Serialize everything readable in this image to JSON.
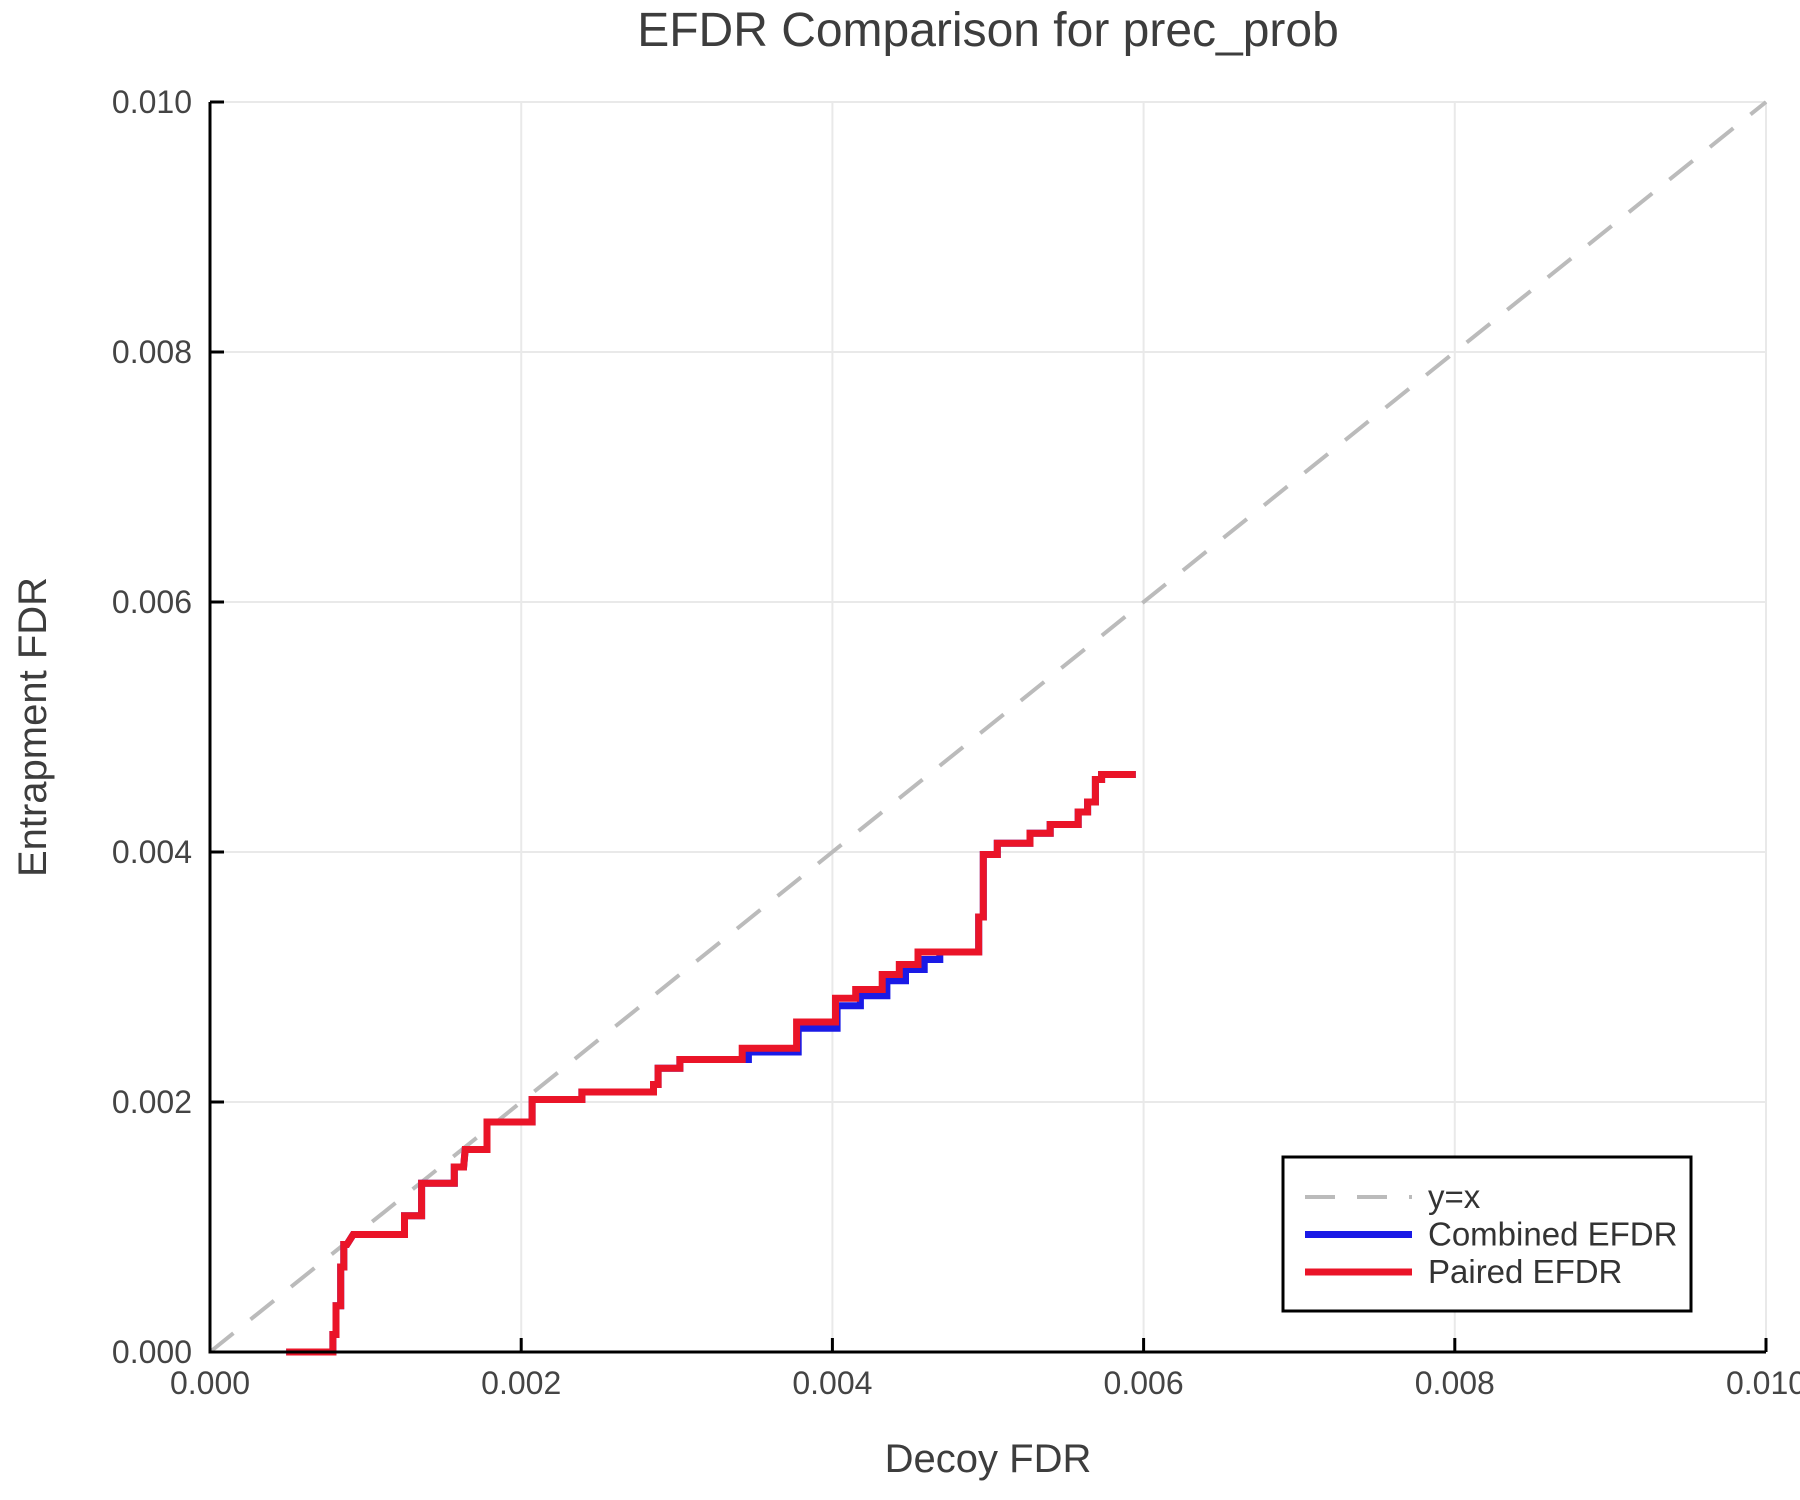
{
  "title": "EFDR Comparison for prec_prob",
  "x_axis": {
    "label": "Decoy FDR",
    "tick_labels": [
      "0.000",
      "0.002",
      "0.004",
      "0.006",
      "0.008",
      "0.010"
    ],
    "tick_values": [
      0.0,
      0.002,
      0.004,
      0.006,
      0.008,
      0.01
    ],
    "range": [
      0.0,
      0.01
    ]
  },
  "y_axis": {
    "label": "Entrapment FDR",
    "tick_labels": [
      "0.000",
      "0.002",
      "0.004",
      "0.006",
      "0.008",
      "0.010"
    ],
    "tick_values": [
      0.0,
      0.002,
      0.004,
      0.006,
      0.008,
      0.01
    ],
    "range": [
      0.0,
      0.01
    ]
  },
  "legend": {
    "position": "lower right",
    "items": [
      {
        "label": "y=x",
        "color": "#bbbbbb",
        "dashed": true
      },
      {
        "label": "Combined EFDR",
        "color": "#1a1ae6",
        "dashed": false
      },
      {
        "label": "Paired EFDR",
        "color": "#ea1428",
        "dashed": false
      }
    ]
  },
  "colors": {
    "identity_line": "#bbbbbb",
    "combined_line": "#1a1ae6",
    "paired_line": "#ea1428",
    "gridline": "#e9e9e9",
    "spine": "#000000",
    "text": "#3d3d3d",
    "legend_border": "#000000",
    "background": "#ffffff"
  },
  "chart_data": {
    "type": "line",
    "title": "EFDR Comparison for prec_prob",
    "xlabel": "Decoy FDR",
    "ylabel": "Entrapment FDR",
    "xlim": [
      0.0,
      0.01
    ],
    "ylim": [
      0.0,
      0.01
    ],
    "grid": true,
    "legend_position": "lower right",
    "series": [
      {
        "name": "y=x",
        "color": "#bbbbbb",
        "style": "dashed",
        "width": 4,
        "points": [
          [
            0.0,
            0.0
          ],
          [
            0.01,
            0.01
          ]
        ]
      },
      {
        "name": "Combined EFDR",
        "color": "#1a1ae6",
        "style": "solid",
        "width": 7,
        "points": [
          [
            0.00049,
            0
          ],
          [
            0.00079,
            0
          ],
          [
            0.00079,
            0.00014
          ],
          [
            0.00081,
            0.00014
          ],
          [
            0.00081,
            0.00037
          ],
          [
            0.00084,
            0.00037
          ],
          [
            0.00084,
            0.00068
          ],
          [
            0.00086,
            0.00068
          ],
          [
            0.00086,
            0.00086
          ],
          [
            0.00088,
            0.00086
          ],
          [
            0.00092,
            0.00094
          ],
          [
            0.00125,
            0.00094
          ],
          [
            0.00125,
            0.00109
          ],
          [
            0.00136,
            0.00109
          ],
          [
            0.00136,
            0.00135
          ],
          [
            0.00157,
            0.00135
          ],
          [
            0.00157,
            0.00148
          ],
          [
            0.00163,
            0.00148
          ],
          [
            0.00164,
            0.00162
          ],
          [
            0.00178,
            0.00162
          ],
          [
            0.00178,
            0.00184
          ],
          [
            0.00207,
            0.00184
          ],
          [
            0.00207,
            0.00202
          ],
          [
            0.00239,
            0.00202
          ],
          [
            0.00239,
            0.00208
          ],
          [
            0.00285,
            0.00208
          ],
          [
            0.00285,
            0.00214
          ],
          [
            0.00288,
            0.00214
          ],
          [
            0.00288,
            0.00227
          ],
          [
            0.00302,
            0.00227
          ],
          [
            0.00302,
            0.00234
          ],
          [
            0.00346,
            0.00234
          ],
          [
            0.00346,
            0.0024
          ],
          [
            0.00378,
            0.0024
          ],
          [
            0.00378,
            0.00259
          ],
          [
            0.00403,
            0.00259
          ],
          [
            0.00403,
            0.00277
          ],
          [
            0.00418,
            0.00277
          ],
          [
            0.00418,
            0.00285
          ],
          [
            0.00435,
            0.00285
          ],
          [
            0.00435,
            0.00297
          ],
          [
            0.00447,
            0.00297
          ],
          [
            0.00447,
            0.00306
          ],
          [
            0.00459,
            0.00306
          ],
          [
            0.00459,
            0.00314
          ],
          [
            0.00469,
            0.00314
          ],
          [
            0.00469,
            0.0032
          ],
          [
            0.00494,
            0.0032
          ],
          [
            0.00494,
            0.00348
          ],
          [
            0.00497,
            0.00348
          ],
          [
            0.00497,
            0.00398
          ],
          [
            0.00506,
            0.00398
          ],
          [
            0.00506,
            0.00407
          ],
          [
            0.00527,
            0.00407
          ],
          [
            0.00527,
            0.00415
          ],
          [
            0.0054,
            0.00415
          ],
          [
            0.0054,
            0.00422
          ],
          [
            0.00558,
            0.00422
          ],
          [
            0.00558,
            0.00432
          ],
          [
            0.00564,
            0.00432
          ],
          [
            0.00564,
            0.0044
          ],
          [
            0.00569,
            0.0044
          ],
          [
            0.00569,
            0.00458
          ],
          [
            0.00573,
            0.00458
          ],
          [
            0.00573,
            0.00462
          ],
          [
            0.00595,
            0.00462
          ]
        ]
      },
      {
        "name": "Paired EFDR",
        "color": "#ea1428",
        "style": "solid",
        "width": 7,
        "points": [
          [
            0.00049,
            0
          ],
          [
            0.00079,
            0
          ],
          [
            0.00079,
            0.00014
          ],
          [
            0.00081,
            0.00014
          ],
          [
            0.00081,
            0.00037
          ],
          [
            0.00084,
            0.00037
          ],
          [
            0.00084,
            0.00068
          ],
          [
            0.00086,
            0.00068
          ],
          [
            0.00086,
            0.00086
          ],
          [
            0.00088,
            0.00086
          ],
          [
            0.00092,
            0.00094
          ],
          [
            0.00125,
            0.00094
          ],
          [
            0.00125,
            0.00109
          ],
          [
            0.00136,
            0.00109
          ],
          [
            0.00136,
            0.00135
          ],
          [
            0.00157,
            0.00135
          ],
          [
            0.00157,
            0.00148
          ],
          [
            0.00163,
            0.00148
          ],
          [
            0.00164,
            0.00162
          ],
          [
            0.00178,
            0.00162
          ],
          [
            0.00178,
            0.00184
          ],
          [
            0.00207,
            0.00184
          ],
          [
            0.00207,
            0.00202
          ],
          [
            0.00239,
            0.00202
          ],
          [
            0.00239,
            0.00208
          ],
          [
            0.00285,
            0.00208
          ],
          [
            0.00285,
            0.00214
          ],
          [
            0.00288,
            0.00214
          ],
          [
            0.00288,
            0.00227
          ],
          [
            0.00302,
            0.00227
          ],
          [
            0.00302,
            0.00234
          ],
          [
            0.00342,
            0.00234
          ],
          [
            0.00342,
            0.00243
          ],
          [
            0.00377,
            0.00243
          ],
          [
            0.00377,
            0.00264
          ],
          [
            0.00402,
            0.00264
          ],
          [
            0.00402,
            0.00283
          ],
          [
            0.00415,
            0.00283
          ],
          [
            0.00415,
            0.0029
          ],
          [
            0.00432,
            0.0029
          ],
          [
            0.00432,
            0.00302
          ],
          [
            0.00443,
            0.00302
          ],
          [
            0.00443,
            0.0031
          ],
          [
            0.00455,
            0.0031
          ],
          [
            0.00455,
            0.0032
          ],
          [
            0.00494,
            0.0032
          ],
          [
            0.00494,
            0.00348
          ],
          [
            0.00497,
            0.00348
          ],
          [
            0.00497,
            0.00398
          ],
          [
            0.00506,
            0.00398
          ],
          [
            0.00506,
            0.00407
          ],
          [
            0.00527,
            0.00407
          ],
          [
            0.00527,
            0.00415
          ],
          [
            0.0054,
            0.00415
          ],
          [
            0.0054,
            0.00422
          ],
          [
            0.00558,
            0.00422
          ],
          [
            0.00558,
            0.00432
          ],
          [
            0.00564,
            0.00432
          ],
          [
            0.00564,
            0.0044
          ],
          [
            0.00569,
            0.0044
          ],
          [
            0.00569,
            0.00458
          ],
          [
            0.00573,
            0.00458
          ],
          [
            0.00573,
            0.00462
          ],
          [
            0.00595,
            0.00462
          ]
        ]
      }
    ]
  }
}
